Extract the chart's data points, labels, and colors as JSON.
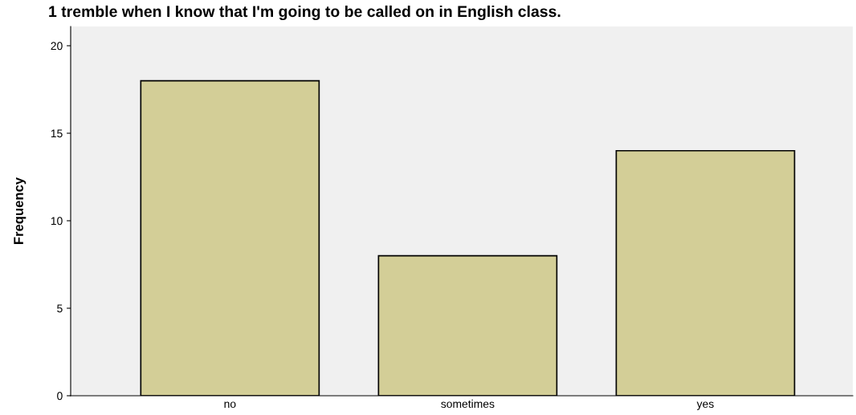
{
  "chart_data": {
    "type": "bar",
    "title": "1 tremble when I know that I'm going to be called on in English class.",
    "ylabel": "Frequency",
    "categories": [
      "no",
      "sometimes",
      "yes"
    ],
    "values": [
      18,
      8,
      14
    ],
    "color": "#d3ce97",
    "ylim": [
      0,
      21.1
    ],
    "yticks": [
      0,
      5,
      10,
      15,
      20
    ],
    "grid": false
  }
}
